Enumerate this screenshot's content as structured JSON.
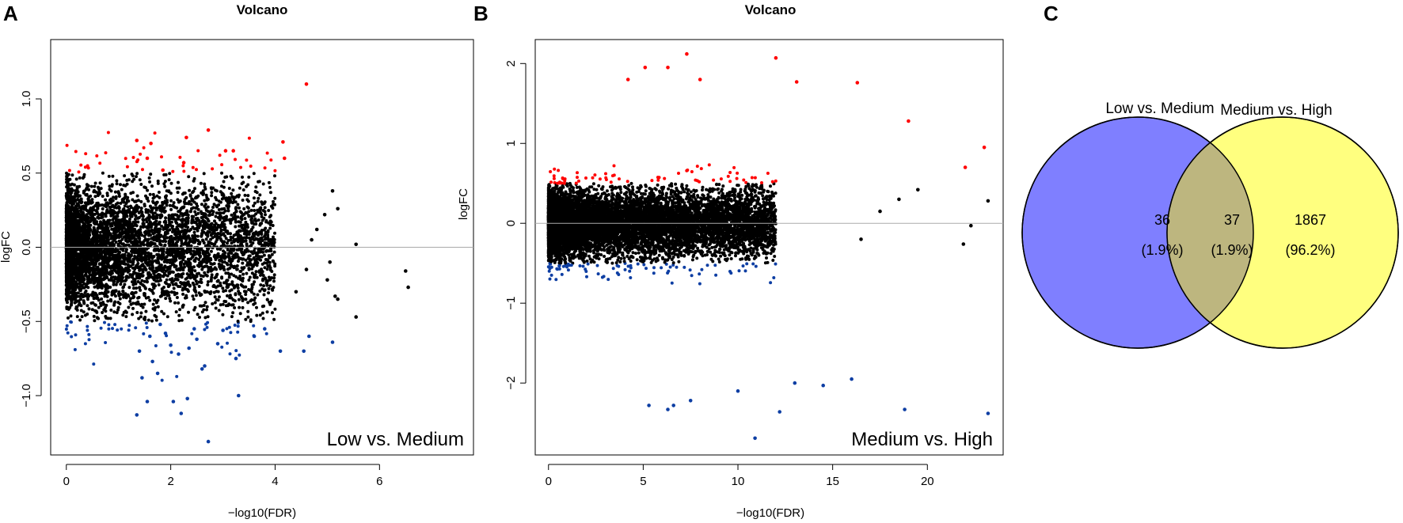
{
  "figure": {
    "panel_labels": [
      "A",
      "B",
      "C"
    ]
  },
  "chart_data": [
    {
      "id": "A",
      "type": "scatter",
      "title": "Volcano",
      "xlabel": "−log10(FDR)",
      "ylabel": "logFC",
      "xlim": [
        -0.3,
        7.8
      ],
      "ylim": [
        -1.4,
        1.4
      ],
      "xticks": [
        0,
        2,
        4,
        6
      ],
      "yticks": [
        -1.0,
        -0.5,
        0.0,
        0.5,
        1.0
      ],
      "ytick_labels": [
        "−1.0",
        "−0.5",
        "0.0",
        "0.5",
        "1.0"
      ],
      "hline": 0,
      "annotation": "Low vs. Medium",
      "colors": {
        "up": "#ff0000",
        "down": "#0d3ea3",
        "ns": "#000000",
        "ref": "#aaaaaa"
      },
      "thresholds": {
        "logFC": 0.5
      },
      "dense_cloud": {
        "n": 5200,
        "x_max": 4.0,
        "fc_sd": 0.2
      },
      "series": [
        {
          "name": "up",
          "x": [
            4.6,
            2.72,
            1.35,
            1.62,
            1.55,
            1.85,
            2.3,
            2.25,
            3.05,
            3.2,
            4.15,
            4.18
          ],
          "y": [
            1.1,
            0.79,
            0.72,
            0.7,
            0.6,
            0.52,
            0.74,
            0.57,
            0.65,
            0.65,
            0.71,
            0.6
          ]
        },
        {
          "name": "down",
          "x": [
            2.72,
            3.3,
            1.35,
            1.55,
            2.05,
            2.2,
            2.32,
            2.6,
            2.65,
            3.25,
            4.55,
            4.65,
            5.1,
            1.45,
            1.75,
            1.65,
            1.4,
            2.0,
            1.6,
            1.9,
            2.45,
            2.5,
            2.9,
            3.6,
            3.8,
            4.1,
            2.15,
            1.8,
            3.0,
            2.35
          ],
          "y": [
            -1.31,
            -1.0,
            -1.13,
            -1.04,
            -1.04,
            -1.12,
            -1.02,
            -0.82,
            -0.8,
            -0.75,
            -0.7,
            -0.6,
            -0.64,
            -0.88,
            -0.85,
            -0.77,
            -0.7,
            -0.66,
            -0.6,
            -0.58,
            -0.55,
            -0.62,
            -0.65,
            -0.6,
            -0.55,
            -0.7,
            -0.72,
            -0.52,
            -0.56,
            -0.68
          ]
        },
        {
          "name": "ns",
          "x": [
            5.55,
            5.2,
            5.1,
            4.95,
            4.7,
            5.05,
            6.5,
            6.55,
            5.55,
            5.2,
            5.0,
            4.6,
            4.4,
            5.15,
            4.8
          ],
          "y": [
            0.02,
            0.26,
            0.38,
            0.22,
            0.05,
            -0.1,
            -0.16,
            -0.27,
            -0.47,
            -0.35,
            -0.22,
            -0.15,
            -0.3,
            -0.33,
            0.12
          ]
        }
      ]
    },
    {
      "id": "B",
      "type": "scatter",
      "title": "Volcano",
      "xlabel": "−log10(FDR)",
      "ylabel": "logFC",
      "xlim": [
        -0.7,
        24
      ],
      "ylim": [
        -2.9,
        2.3
      ],
      "xticks": [
        0,
        5,
        10,
        15,
        20
      ],
      "yticks": [
        -2,
        -1,
        0,
        1,
        2
      ],
      "ytick_labels": [
        "−2",
        "−1",
        "0",
        "1",
        "2"
      ],
      "hline": 0,
      "annotation": "Medium vs. High",
      "colors": {
        "up": "#ff0000",
        "down": "#0d3ea3",
        "ns": "#000000",
        "ref": "#aaaaaa"
      },
      "thresholds": {
        "logFC": 0.5
      },
      "dense_cloud": {
        "n": 9000,
        "x_max": 12,
        "fc_sd": 0.2
      },
      "series": [
        {
          "name": "up",
          "x": [
            7.3,
            12.0,
            8.0,
            13.1,
            16.3,
            5.1,
            6.3,
            4.2,
            23.0,
            22.0,
            19.0
          ],
          "y": [
            2.12,
            2.07,
            1.8,
            1.77,
            1.76,
            1.95,
            1.95,
            1.8,
            0.95,
            0.7,
            1.28
          ]
        },
        {
          "name": "down",
          "x": [
            10.9,
            12.2,
            18.8,
            23.2,
            5.3,
            6.3,
            6.6,
            7.5,
            10.0,
            13.0,
            14.5,
            16.0
          ],
          "y": [
            -2.69,
            -2.36,
            -2.33,
            -2.38,
            -2.28,
            -2.33,
            -2.28,
            -2.22,
            -2.1,
            -2.0,
            -2.03,
            -1.95
          ]
        },
        {
          "name": "ns",
          "x": [
            23.2,
            22.3,
            21.9,
            19.5,
            18.5,
            17.5,
            16.5
          ],
          "y": [
            0.28,
            -0.03,
            -0.26,
            0.42,
            0.3,
            0.15,
            -0.2
          ]
        }
      ]
    },
    {
      "id": "C",
      "type": "venn",
      "sets": [
        "Low vs. Medium",
        "Medium vs. High"
      ],
      "regions": [
        {
          "name": "only_low_medium",
          "count": "36",
          "percent": "(1.9%)"
        },
        {
          "name": "both",
          "count": "37",
          "percent": "(1.9%)"
        },
        {
          "name": "only_medium_high",
          "count": "1867",
          "percent": "(96.2%)"
        }
      ],
      "colors": {
        "left": "#7f7fff",
        "right": "#ffff7f",
        "overlap": "#bdb67f",
        "stroke": "#000000"
      }
    }
  ]
}
